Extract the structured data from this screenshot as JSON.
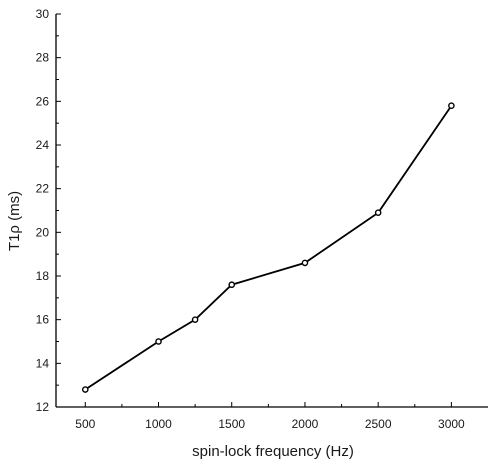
{
  "chart_data": {
    "type": "line",
    "title": "",
    "xlabel": "spin-lock frequency (Hz)",
    "ylabel": "T1ρ (ms)",
    "xlim": [
      300,
      3250
    ],
    "ylim": [
      12,
      30
    ],
    "x_ticks": [
      500,
      1000,
      1500,
      2000,
      2500,
      3000
    ],
    "y_ticks": [
      12,
      14,
      16,
      18,
      20,
      22,
      24,
      26,
      28,
      30
    ],
    "grid": false,
    "series": [
      {
        "color": "#000000",
        "marker": "open-circle",
        "x": [
          500,
          1000,
          1250,
          1500,
          2000,
          2500,
          3000
        ],
        "y": [
          12.8,
          15.0,
          16.0,
          17.6,
          18.6,
          20.9,
          25.8
        ]
      }
    ]
  }
}
